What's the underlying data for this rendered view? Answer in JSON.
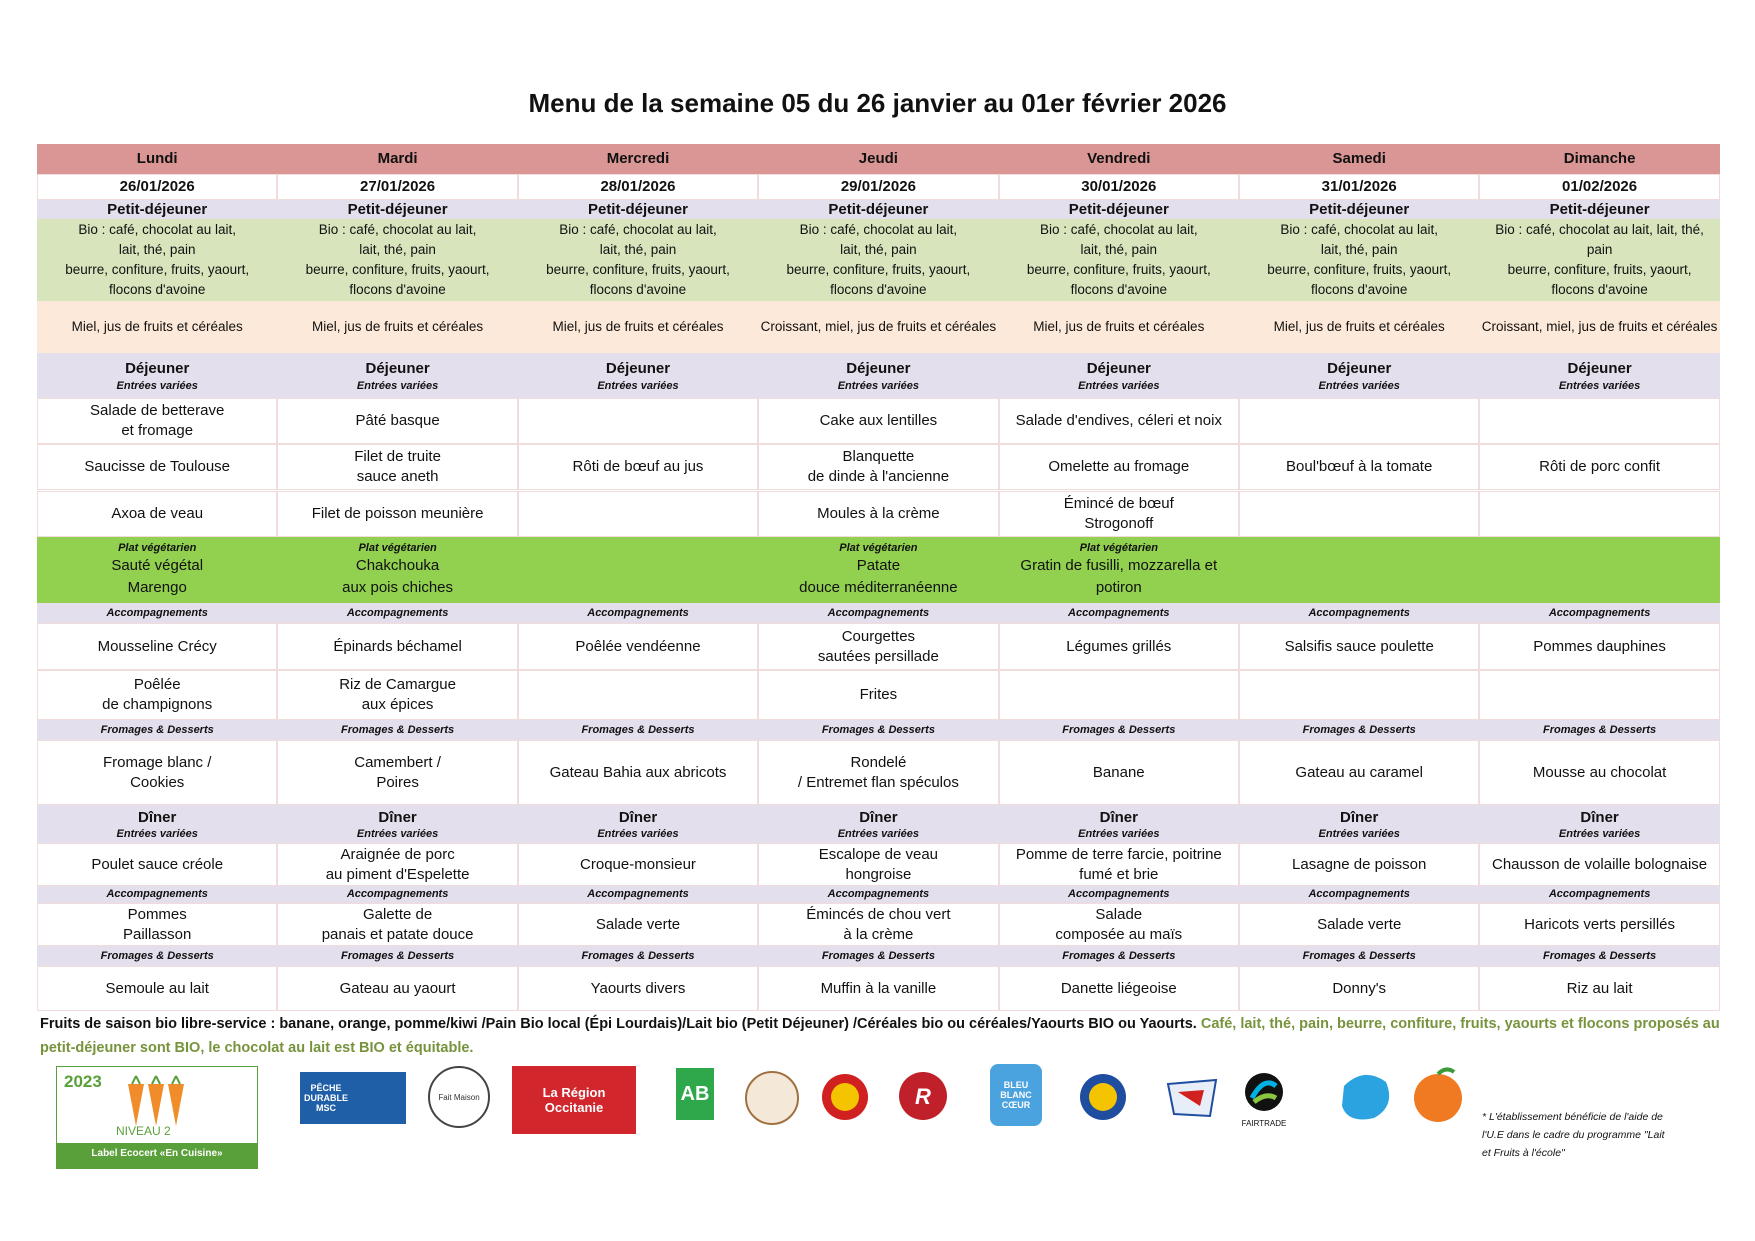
{
  "title": "Menu de la semaine 05 du 26 janvier au 01er février 2026",
  "days": [
    {
      "name": "Lundi",
      "date": "26/01/2026",
      "breakfast": {
        "heading": "Petit-déjeuner",
        "text": "Bio : café, chocolat au lait,\nlait, thé, pain\nbeurre, confiture, fruits, yaourt,\nflocons d'avoine",
        "extra": "Miel, jus de fruits et céréales"
      },
      "lunch": {
        "heading": "Déjeuner",
        "starters_label": "Entrées variées",
        "starters": [
          "Salade de betterave\net fromage",
          "Saucisse de Toulouse",
          "Axoa de veau"
        ],
        "veg_label": "Plat végétarien",
        "veg": "Sauté végétal\nMarengo",
        "sides_label": "Accompagnements",
        "sides": [
          "Mousseline Crécy",
          "Poêlée\nde champignons"
        ],
        "desserts_label": "Fromages & Desserts",
        "dessert": "Fromage blanc /\nCookies"
      },
      "dinner": {
        "heading": "Dîner",
        "starters_label": "Entrées variées",
        "starter": "Poulet sauce créole",
        "sides_label": "Accompagnements",
        "side": "Pommes\nPaillasson",
        "desserts_label": "Fromages & Desserts",
        "dessert": "Semoule au lait"
      }
    },
    {
      "name": "Mardi",
      "date": "27/01/2026",
      "breakfast": {
        "heading": "Petit-déjeuner",
        "text": "Bio : café, chocolat au lait,\nlait, thé, pain\nbeurre, confiture, fruits, yaourt,\nflocons d'avoine",
        "extra": "Miel, jus de fruits et céréales"
      },
      "lunch": {
        "heading": "Déjeuner",
        "starters_label": "Entrées variées",
        "starters": [
          "Pâté basque",
          "Filet de truite\nsauce aneth",
          "Filet de poisson meunière"
        ],
        "veg_label": "Plat végétarien",
        "veg": "Chakchouka\naux pois chiches",
        "sides_label": "Accompagnements",
        "sides": [
          "Épinards béchamel",
          "Riz de Camargue\naux épices"
        ],
        "desserts_label": "Fromages & Desserts",
        "dessert": "Camembert /\nPoires"
      },
      "dinner": {
        "heading": "Dîner",
        "starters_label": "Entrées variées",
        "starter": "Araignée de porc\nau piment d'Espelette",
        "sides_label": "Accompagnements",
        "side": "Galette de\npanais et patate douce",
        "desserts_label": "Fromages & Desserts",
        "dessert": "Gateau au yaourt"
      }
    },
    {
      "name": "Mercredi",
      "date": "28/01/2026",
      "breakfast": {
        "heading": "Petit-déjeuner",
        "text": "Bio : café, chocolat au lait,\nlait, thé, pain\nbeurre, confiture, fruits, yaourt,\nflocons d'avoine",
        "extra": "Miel, jus de fruits et céréales"
      },
      "lunch": {
        "heading": "Déjeuner",
        "starters_label": "Entrées variées",
        "starters": [
          null,
          "Rôti de bœuf au jus",
          null
        ],
        "veg_label": null,
        "veg": null,
        "sides_label": "Accompagnements",
        "sides": [
          "Poêlée vendéenne",
          null
        ],
        "desserts_label": "Fromages & Desserts",
        "dessert": "Gateau Bahia aux abricots"
      },
      "dinner": {
        "heading": "Dîner",
        "starters_label": "Entrées variées",
        "starter": "Croque-monsieur",
        "sides_label": "Accompagnements",
        "side": "Salade verte",
        "desserts_label": "Fromages & Desserts",
        "dessert": "Yaourts divers"
      }
    },
    {
      "name": "Jeudi",
      "date": "29/01/2026",
      "breakfast": {
        "heading": "Petit-déjeuner",
        "text": "Bio : café, chocolat au lait,\nlait, thé, pain\nbeurre, confiture, fruits, yaourt,\nflocons d'avoine",
        "extra": "Croissant, miel, jus de fruits et céréales"
      },
      "lunch": {
        "heading": "Déjeuner",
        "starters_label": "Entrées variées",
        "starters": [
          "Cake aux lentilles",
          "Blanquette\nde dinde à l'ancienne",
          "Moules à la crème"
        ],
        "veg_label": "Plat végétarien",
        "veg": "Patate\ndouce méditerranéenne",
        "sides_label": "Accompagnements",
        "sides": [
          "Courgettes\nsautées persillade",
          "Frites"
        ],
        "desserts_label": "Fromages & Desserts",
        "dessert": "Rondelé\n/ Entremet flan spéculos"
      },
      "dinner": {
        "heading": "Dîner",
        "starters_label": "Entrées variées",
        "starter": "Escalope de veau\nhongroise",
        "sides_label": "Accompagnements",
        "side": "Émincés de chou vert\nà la crème",
        "desserts_label": "Fromages & Desserts",
        "dessert": "Muffin à la vanille"
      }
    },
    {
      "name": "Vendredi",
      "date": "30/01/2026",
      "breakfast": {
        "heading": "Petit-déjeuner",
        "text": "Bio : café, chocolat au lait,\nlait, thé, pain\nbeurre, confiture, fruits, yaourt,\nflocons d'avoine",
        "extra": "Miel, jus de fruits et céréales"
      },
      "lunch": {
        "heading": "Déjeuner",
        "starters_label": "Entrées variées",
        "starters": [
          "Salade d'endives, céleri et noix",
          "Omelette au fromage",
          "Émincé de bœuf\nStrogonoff"
        ],
        "veg_label": "Plat végétarien",
        "veg": "Gratin de fusilli, mozzarella et\npotiron",
        "sides_label": "Accompagnements",
        "sides": [
          "Légumes grillés",
          null
        ],
        "desserts_label": "Fromages & Desserts",
        "dessert": "Banane"
      },
      "dinner": {
        "heading": "Dîner",
        "starters_label": "Entrées variées",
        "starter": "Pomme de terre farcie, poitrine\nfumé et brie",
        "sides_label": "Accompagnements",
        "side": "Salade\ncomposée au maïs",
        "desserts_label": "Fromages & Desserts",
        "dessert": "Danette liégeoise"
      }
    },
    {
      "name": "Samedi",
      "date": "31/01/2026",
      "breakfast": {
        "heading": "Petit-déjeuner",
        "text": "Bio : café, chocolat au lait,\nlait, thé, pain\nbeurre, confiture, fruits, yaourt,\nflocons d'avoine",
        "extra": "Miel, jus de fruits et céréales"
      },
      "lunch": {
        "heading": "Déjeuner",
        "starters_label": "Entrées variées",
        "starters": [
          null,
          "Boul'bœuf à la tomate",
          null
        ],
        "veg_label": null,
        "veg": null,
        "sides_label": "Accompagnements",
        "sides": [
          "Salsifis sauce poulette",
          null
        ],
        "desserts_label": "Fromages & Desserts",
        "dessert": "Gateau au caramel"
      },
      "dinner": {
        "heading": "Dîner",
        "starters_label": "Entrées variées",
        "starter": "Lasagne de poisson",
        "sides_label": "Accompagnements",
        "side": "Salade verte",
        "desserts_label": "Fromages & Desserts",
        "dessert": "Donny's"
      }
    },
    {
      "name": "Dimanche",
      "date": "01/02/2026",
      "breakfast": {
        "heading": "Petit-déjeuner",
        "text": "Bio : café, chocolat au lait, lait, thé,\npain\nbeurre, confiture, fruits, yaourt,\nflocons d'avoine",
        "extra": "Croissant, miel, jus de fruits et céréales"
      },
      "lunch": {
        "heading": "Déjeuner",
        "starters_label": "Entrées variées",
        "starters": [
          null,
          "Rôti de porc confit",
          null
        ],
        "veg_label": null,
        "veg": null,
        "sides_label": "Accompagnements",
        "sides": [
          "Pommes dauphines",
          null
        ],
        "desserts_label": "Fromages & Desserts",
        "dessert": "Mousse au chocolat"
      },
      "dinner": {
        "heading": "Dîner",
        "starters_label": "Entrées variées",
        "starter": "Chausson de volaille bolognaise",
        "sides_label": "Accompagnements",
        "side": "Haricots verts persillés",
        "desserts_label": "Fromages & Desserts",
        "dessert": "Riz au lait"
      }
    }
  ],
  "footer": {
    "bold": "Fruits de saison bio libre-service : banane, orange, pomme/kiwi /Pain Bio local (Épi Lourdais)/Lait bio (Petit Déjeuner) /Céréales bio ou céréales/Yaourts BIO ou Yaourts.",
    "green": "Café, lait, thé, pain, beurre, confiture, fruits, yaourts et flocons proposés au petit-déjeuner sont BIO, le chocolat au lait est BIO et équitable."
  },
  "logos": {
    "ecocert_year": "2023",
    "ecocert_level": "NIVEAU 2",
    "ecocert_label": "Label Ecocert «En Cuisine»",
    "msc": "PÊCHE\nDURABLE\nMSC",
    "fait_maison": "Fait Maison",
    "region": "La Région\nOccitanie",
    "ab": "AB",
    "bbc": "BLEU\nBLANC\nCŒUR",
    "fairtrade": "FAIRTRADE",
    "note": "* L'établissement bénéficie de l'aide de l'U.E dans le cadre du programme \"Lait et Fruits à l'école\""
  }
}
